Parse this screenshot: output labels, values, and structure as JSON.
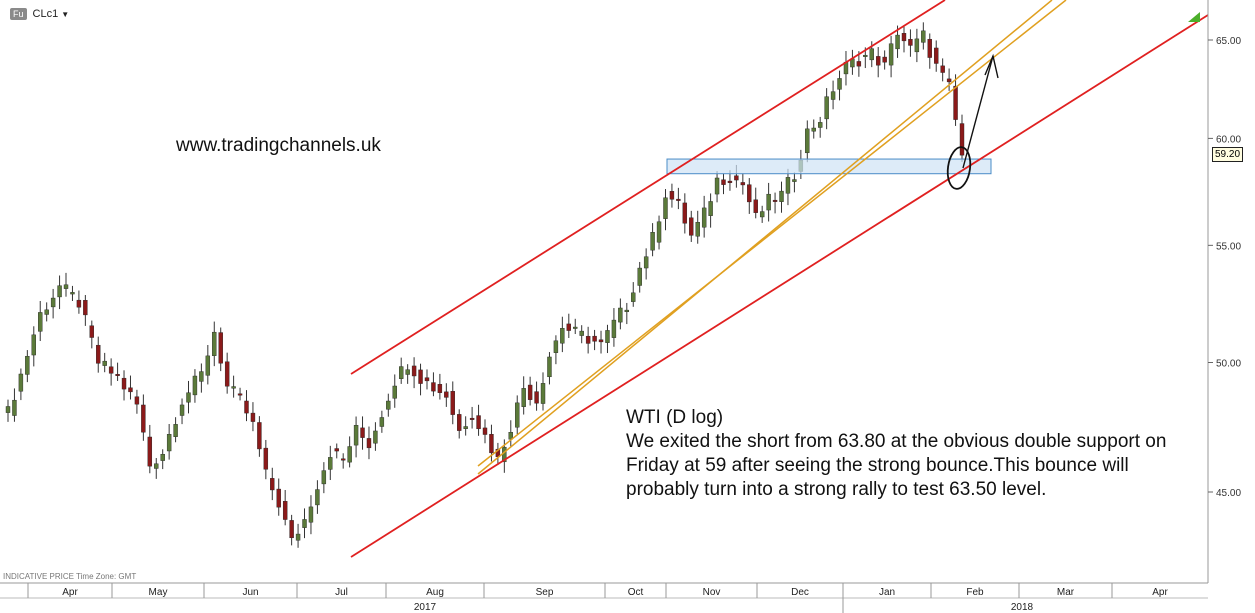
{
  "toolbar": {
    "badge": "Fu",
    "instrument": "CLc1",
    "dropdown_glyph": "▼"
  },
  "watermark": "www.tradingchannels.uk",
  "annotation": {
    "title": "WTI (D log)",
    "body": "We exited the short from 63.80 at the obvious double support on Friday at 59 after seeing the strong bounce.This bounce will probably turn into a strong rally to test 63.50 level."
  },
  "footer_note": "INDICATIVE PRICE   Time Zone: GMT",
  "last_price_label": "59.20",
  "colors": {
    "bull": "#5b7a3a",
    "bear": "#8b1a1a",
    "channel": "#e02020",
    "inner_channel": "#e0a020",
    "zone_fill": "#cfe3f5",
    "zone_stroke": "#4a8cc7"
  },
  "chart_data": {
    "type": "candlestick",
    "scale": "log",
    "y_ticks": [
      "65.00",
      "60.00",
      "55.00",
      "50.00",
      "45.00"
    ],
    "y_tick_values": [
      65,
      60,
      55,
      50,
      45
    ],
    "x_months": [
      "Apr",
      "May",
      "Jun",
      "Jul",
      "Aug",
      "Sep",
      "Oct",
      "Nov",
      "Dec",
      "Jan",
      "Feb",
      "Mar",
      "Apr"
    ],
    "x_years": [
      "2017",
      "2018"
    ],
    "last_price": 59.2,
    "support_zone": {
      "low": 58.3,
      "high": 59.0
    },
    "price_path": [
      [
        0,
        48.0
      ],
      [
        2,
        49.5
      ],
      [
        5,
        52.0
      ],
      [
        8,
        53.2
      ],
      [
        11,
        52.5
      ],
      [
        14,
        50.0
      ],
      [
        17,
        49.4
      ],
      [
        20,
        48.3
      ],
      [
        22,
        46.0
      ],
      [
        24,
        46.5
      ],
      [
        27,
        48.5
      ],
      [
        30,
        49.5
      ],
      [
        32,
        51.3
      ],
      [
        34,
        49.0
      ],
      [
        36,
        48.5
      ],
      [
        38,
        47.5
      ],
      [
        40,
        45.6
      ],
      [
        42,
        44.6
      ],
      [
        44,
        43.2
      ],
      [
        46,
        44.0
      ],
      [
        48,
        45.3
      ],
      [
        50,
        46.5
      ],
      [
        52,
        46.2
      ],
      [
        54,
        47.3
      ],
      [
        56,
        46.8
      ],
      [
        58,
        48.0
      ],
      [
        60,
        49.3
      ],
      [
        62,
        50.0
      ],
      [
        64,
        49.4
      ],
      [
        66,
        49.0
      ],
      [
        68,
        48.7
      ],
      [
        70,
        47.3
      ],
      [
        72,
        48.0
      ],
      [
        74,
        47.1
      ],
      [
        76,
        46.2
      ],
      [
        78,
        47.5
      ],
      [
        80,
        49.0
      ],
      [
        82,
        48.5
      ],
      [
        84,
        50.3
      ],
      [
        86,
        51.5
      ],
      [
        88,
        51.2
      ],
      [
        90,
        51.0
      ],
      [
        92,
        50.7
      ],
      [
        94,
        51.6
      ],
      [
        96,
        52.4
      ],
      [
        98,
        54.0
      ],
      [
        100,
        55.3
      ],
      [
        102,
        57.4
      ],
      [
        104,
        56.8
      ],
      [
        106,
        55.4
      ],
      [
        108,
        56.4
      ],
      [
        110,
        58.0
      ],
      [
        112,
        58.2
      ],
      [
        114,
        57.8
      ],
      [
        116,
        56.2
      ],
      [
        118,
        57.0
      ],
      [
        120,
        57.3
      ],
      [
        122,
        58.3
      ],
      [
        124,
        60.3
      ],
      [
        126,
        61.0
      ],
      [
        128,
        62.5
      ],
      [
        130,
        63.6
      ],
      [
        132,
        64.0
      ],
      [
        134,
        64.3
      ],
      [
        136,
        63.6
      ],
      [
        138,
        65.5
      ],
      [
        140,
        64.5
      ],
      [
        142,
        65.2
      ],
      [
        144,
        63.6
      ],
      [
        146,
        62.5
      ],
      [
        148,
        59.2
      ]
    ]
  }
}
